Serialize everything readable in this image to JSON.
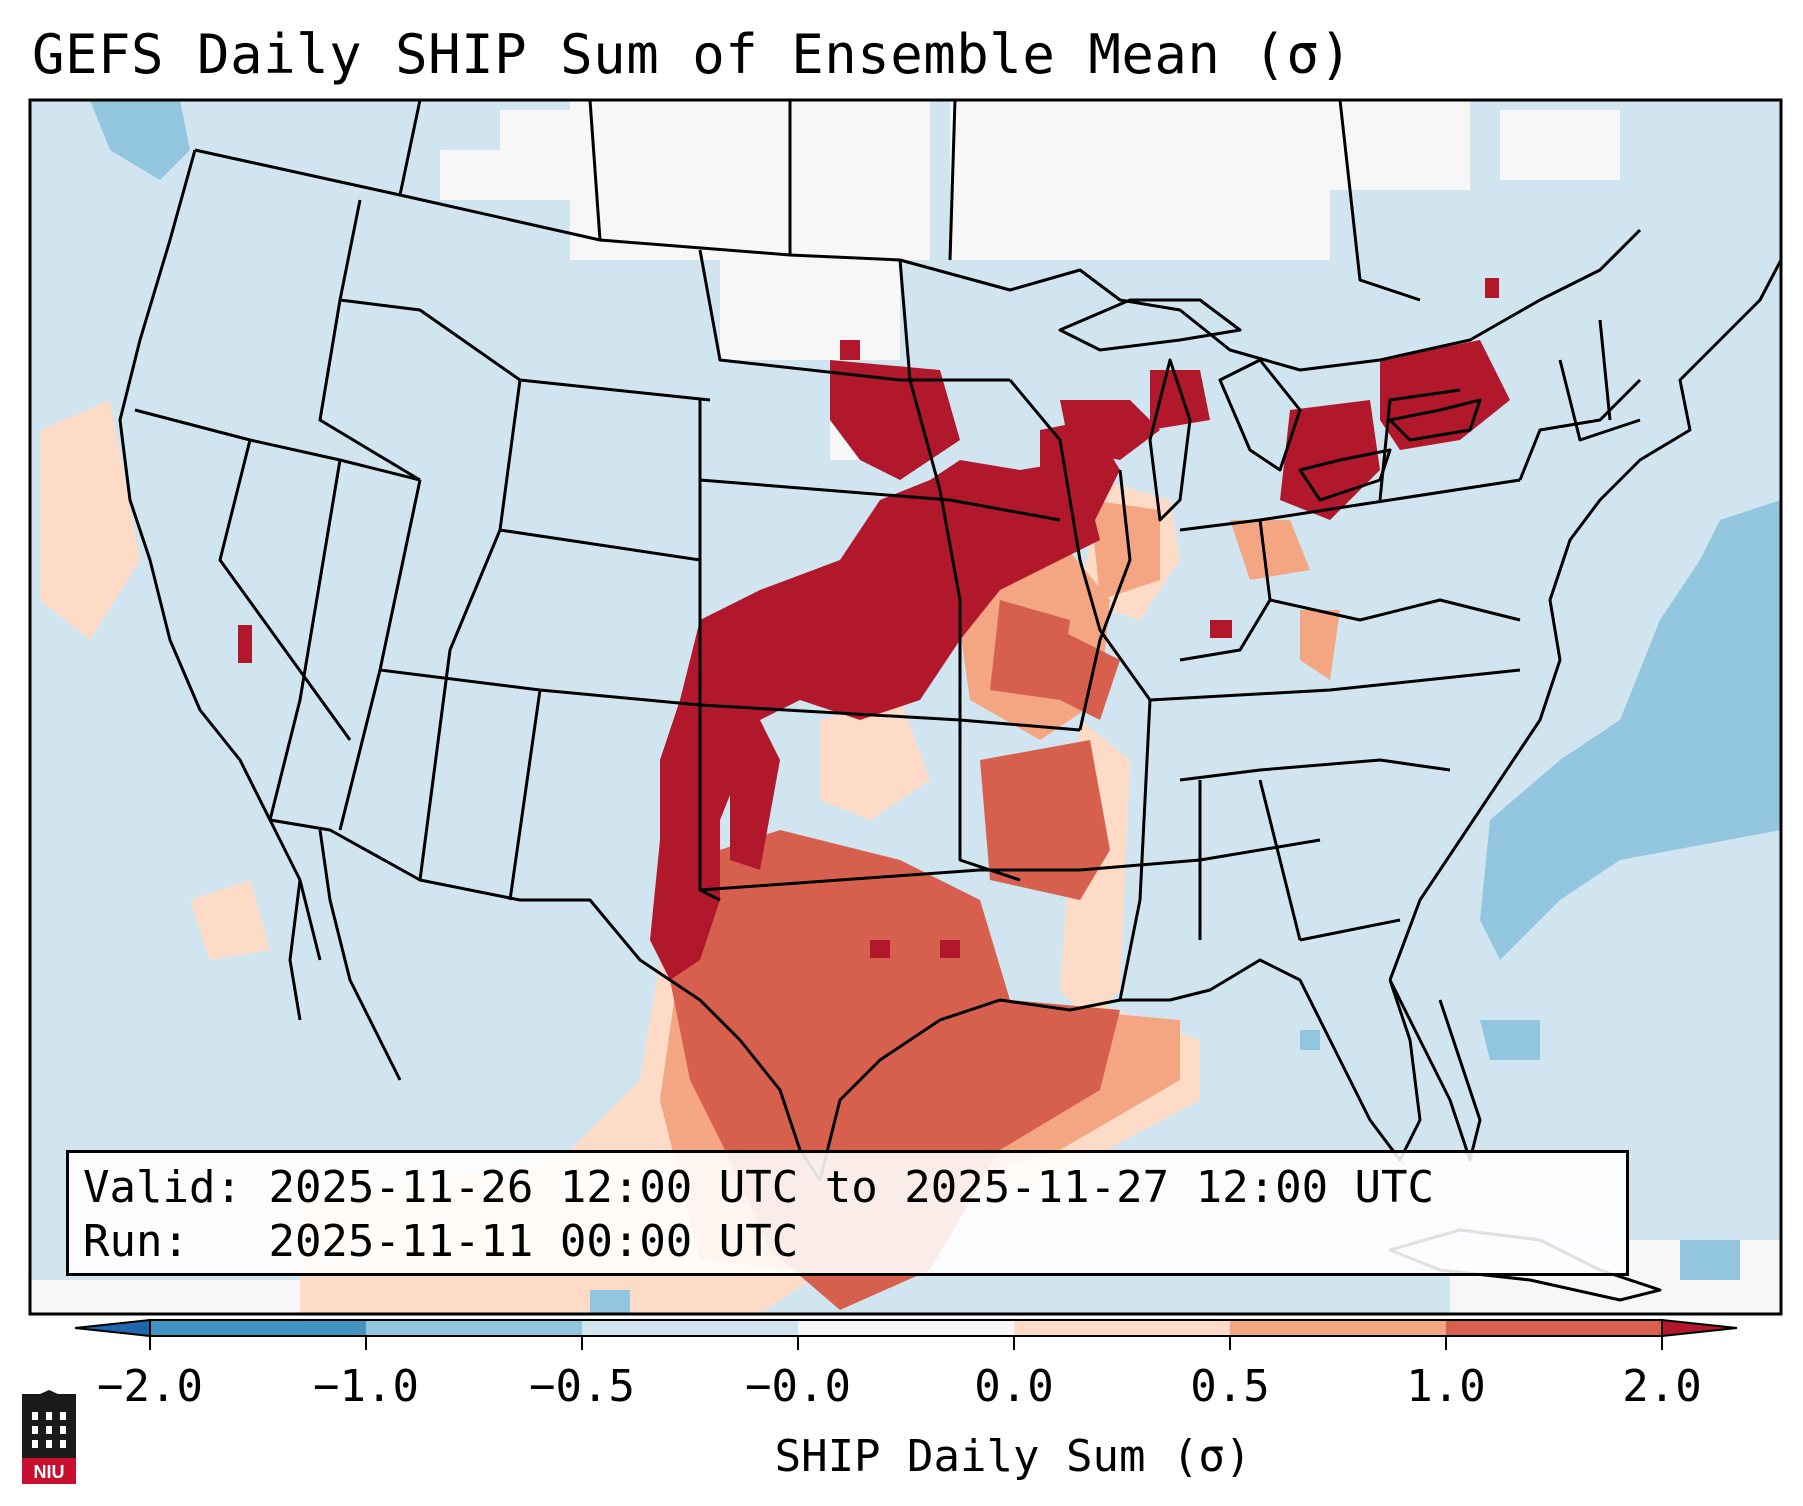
{
  "title": "GEFS Daily SHIP Sum of Ensemble Mean (σ)",
  "info": {
    "valid_label": "Valid:",
    "valid_value": "2025-11-26 12:00 UTC to 2025-11-27 12:00 UTC",
    "run_label": "Run:",
    "run_value": "2025-11-11 00:00 UTC"
  },
  "colorbar": {
    "label": "SHIP Daily Sum (σ)",
    "ticks": [
      "−2.0",
      "−1.0",
      "−0.5",
      "−0.0",
      "0.0",
      "0.5",
      "1.0",
      "2.0"
    ],
    "colors": [
      "#2166ac",
      "#4393c3",
      "#92c5de",
      "#d1e5f0",
      "#f7f7f7",
      "#fddbc7",
      "#f4a582",
      "#d6604d",
      "#b2182b"
    ]
  },
  "map": {
    "background_color": "#d1e5f0",
    "projection": "lambert-conformal",
    "region": "CONUS"
  },
  "logo": {
    "name": "niu-logo",
    "text": "NIU"
  }
}
